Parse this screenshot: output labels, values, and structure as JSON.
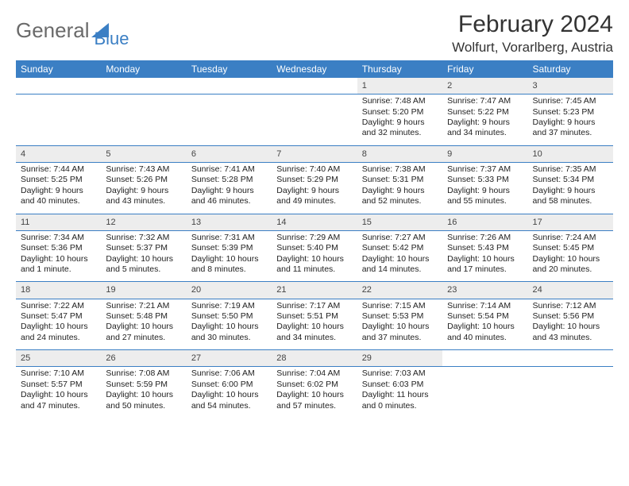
{
  "logo": {
    "word1": "General",
    "word2": "Blue"
  },
  "title": "February 2024",
  "location": "Wolfurt, Vorarlberg, Austria",
  "colors": {
    "header_bg": "#3b7fc4",
    "header_text": "#ffffff",
    "daynum_bg": "#ededed",
    "row_border": "#3b7fc4",
    "text": "#222222",
    "logo_gray": "#6a6a6a",
    "logo_blue": "#3b7fc4",
    "background": "#ffffff"
  },
  "weekdays": [
    "Sunday",
    "Monday",
    "Tuesday",
    "Wednesday",
    "Thursday",
    "Friday",
    "Saturday"
  ],
  "weeks": [
    [
      null,
      null,
      null,
      null,
      {
        "n": "1",
        "sr": "Sunrise: 7:48 AM",
        "ss": "Sunset: 5:20 PM",
        "dl": "Daylight: 9 hours and 32 minutes."
      },
      {
        "n": "2",
        "sr": "Sunrise: 7:47 AM",
        "ss": "Sunset: 5:22 PM",
        "dl": "Daylight: 9 hours and 34 minutes."
      },
      {
        "n": "3",
        "sr": "Sunrise: 7:45 AM",
        "ss": "Sunset: 5:23 PM",
        "dl": "Daylight: 9 hours and 37 minutes."
      }
    ],
    [
      {
        "n": "4",
        "sr": "Sunrise: 7:44 AM",
        "ss": "Sunset: 5:25 PM",
        "dl": "Daylight: 9 hours and 40 minutes."
      },
      {
        "n": "5",
        "sr": "Sunrise: 7:43 AM",
        "ss": "Sunset: 5:26 PM",
        "dl": "Daylight: 9 hours and 43 minutes."
      },
      {
        "n": "6",
        "sr": "Sunrise: 7:41 AM",
        "ss": "Sunset: 5:28 PM",
        "dl": "Daylight: 9 hours and 46 minutes."
      },
      {
        "n": "7",
        "sr": "Sunrise: 7:40 AM",
        "ss": "Sunset: 5:29 PM",
        "dl": "Daylight: 9 hours and 49 minutes."
      },
      {
        "n": "8",
        "sr": "Sunrise: 7:38 AM",
        "ss": "Sunset: 5:31 PM",
        "dl": "Daylight: 9 hours and 52 minutes."
      },
      {
        "n": "9",
        "sr": "Sunrise: 7:37 AM",
        "ss": "Sunset: 5:33 PM",
        "dl": "Daylight: 9 hours and 55 minutes."
      },
      {
        "n": "10",
        "sr": "Sunrise: 7:35 AM",
        "ss": "Sunset: 5:34 PM",
        "dl": "Daylight: 9 hours and 58 minutes."
      }
    ],
    [
      {
        "n": "11",
        "sr": "Sunrise: 7:34 AM",
        "ss": "Sunset: 5:36 PM",
        "dl": "Daylight: 10 hours and 1 minute."
      },
      {
        "n": "12",
        "sr": "Sunrise: 7:32 AM",
        "ss": "Sunset: 5:37 PM",
        "dl": "Daylight: 10 hours and 5 minutes."
      },
      {
        "n": "13",
        "sr": "Sunrise: 7:31 AM",
        "ss": "Sunset: 5:39 PM",
        "dl": "Daylight: 10 hours and 8 minutes."
      },
      {
        "n": "14",
        "sr": "Sunrise: 7:29 AM",
        "ss": "Sunset: 5:40 PM",
        "dl": "Daylight: 10 hours and 11 minutes."
      },
      {
        "n": "15",
        "sr": "Sunrise: 7:27 AM",
        "ss": "Sunset: 5:42 PM",
        "dl": "Daylight: 10 hours and 14 minutes."
      },
      {
        "n": "16",
        "sr": "Sunrise: 7:26 AM",
        "ss": "Sunset: 5:43 PM",
        "dl": "Daylight: 10 hours and 17 minutes."
      },
      {
        "n": "17",
        "sr": "Sunrise: 7:24 AM",
        "ss": "Sunset: 5:45 PM",
        "dl": "Daylight: 10 hours and 20 minutes."
      }
    ],
    [
      {
        "n": "18",
        "sr": "Sunrise: 7:22 AM",
        "ss": "Sunset: 5:47 PM",
        "dl": "Daylight: 10 hours and 24 minutes."
      },
      {
        "n": "19",
        "sr": "Sunrise: 7:21 AM",
        "ss": "Sunset: 5:48 PM",
        "dl": "Daylight: 10 hours and 27 minutes."
      },
      {
        "n": "20",
        "sr": "Sunrise: 7:19 AM",
        "ss": "Sunset: 5:50 PM",
        "dl": "Daylight: 10 hours and 30 minutes."
      },
      {
        "n": "21",
        "sr": "Sunrise: 7:17 AM",
        "ss": "Sunset: 5:51 PM",
        "dl": "Daylight: 10 hours and 34 minutes."
      },
      {
        "n": "22",
        "sr": "Sunrise: 7:15 AM",
        "ss": "Sunset: 5:53 PM",
        "dl": "Daylight: 10 hours and 37 minutes."
      },
      {
        "n": "23",
        "sr": "Sunrise: 7:14 AM",
        "ss": "Sunset: 5:54 PM",
        "dl": "Daylight: 10 hours and 40 minutes."
      },
      {
        "n": "24",
        "sr": "Sunrise: 7:12 AM",
        "ss": "Sunset: 5:56 PM",
        "dl": "Daylight: 10 hours and 43 minutes."
      }
    ],
    [
      {
        "n": "25",
        "sr": "Sunrise: 7:10 AM",
        "ss": "Sunset: 5:57 PM",
        "dl": "Daylight: 10 hours and 47 minutes."
      },
      {
        "n": "26",
        "sr": "Sunrise: 7:08 AM",
        "ss": "Sunset: 5:59 PM",
        "dl": "Daylight: 10 hours and 50 minutes."
      },
      {
        "n": "27",
        "sr": "Sunrise: 7:06 AM",
        "ss": "Sunset: 6:00 PM",
        "dl": "Daylight: 10 hours and 54 minutes."
      },
      {
        "n": "28",
        "sr": "Sunrise: 7:04 AM",
        "ss": "Sunset: 6:02 PM",
        "dl": "Daylight: 10 hours and 57 minutes."
      },
      {
        "n": "29",
        "sr": "Sunrise: 7:03 AM",
        "ss": "Sunset: 6:03 PM",
        "dl": "Daylight: 11 hours and 0 minutes."
      },
      null,
      null
    ]
  ]
}
